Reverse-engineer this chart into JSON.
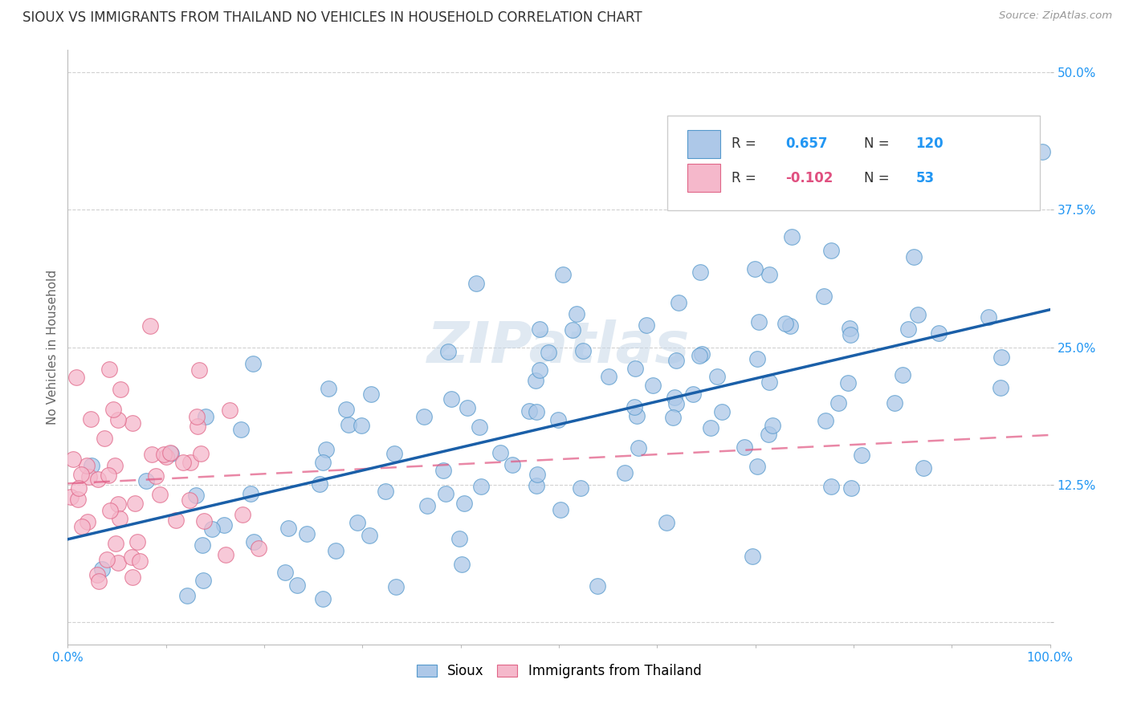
{
  "title": "SIOUX VS IMMIGRANTS FROM THAILAND NO VEHICLES IN HOUSEHOLD CORRELATION CHART",
  "source": "Source: ZipAtlas.com",
  "ylabel": "No Vehicles in Household",
  "xlim": [
    0.0,
    1.0
  ],
  "ylim": [
    -0.02,
    0.52
  ],
  "yticks": [
    0.0,
    0.125,
    0.25,
    0.375,
    0.5
  ],
  "ytick_labels": [
    "",
    "12.5%",
    "25.0%",
    "37.5%",
    "50.0%"
  ],
  "xtick_labels_show": [
    "0.0%",
    "",
    "",
    "",
    "",
    "",
    "",
    "",
    "",
    "",
    "100.0%"
  ],
  "sioux_R": 0.657,
  "sioux_N": 120,
  "thailand_R": -0.102,
  "thailand_N": 53,
  "sioux_face_color": "#adc8e8",
  "sioux_edge_color": "#5599cc",
  "thailand_face_color": "#f5b8cb",
  "thailand_edge_color": "#e06688",
  "sioux_line_color": "#1a5fa8",
  "thailand_line_color": "#e05580",
  "watermark_color": "#c8d8e8",
  "background_color": "#ffffff",
  "grid_color": "#cccccc",
  "title_fontsize": 12,
  "tick_fontsize": 11,
  "axis_label_fontsize": 11,
  "legend_blue_color": "#2196f3",
  "legend_pink_color": "#e05080"
}
